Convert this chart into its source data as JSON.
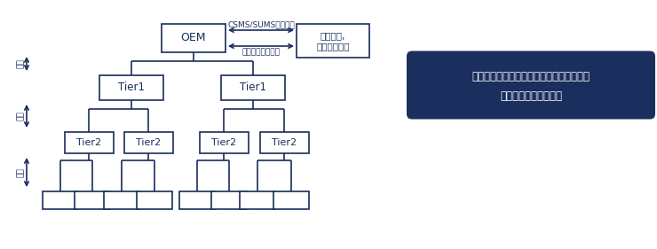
{
  "bg_color": "#ffffff",
  "box_edge_color": "#1a2d5a",
  "box_face_color": "#ffffff",
  "dark_box_face_color": "#1b2f5e",
  "text_color": "#1a2d5a",
  "white_text_color": "#ffffff",
  "line_color": "#1a2d5a",
  "oem_label": "OEM",
  "cert_label": "認定機関,\n技術サービス",
  "tier1_label": "Tier1",
  "tier2_label": "Tier2",
  "csms_label": "CSMS/SUMS認定審査",
  "vehicle_label": "車両型式認定審査",
  "renkai_label": "連携",
  "callout_line1": "サプライチェーン全体で論証が必要になる",
  "callout_line2": "（要求とエビデンス）",
  "fig_w": 7.4,
  "fig_h": 2.81,
  "dpi": 100
}
